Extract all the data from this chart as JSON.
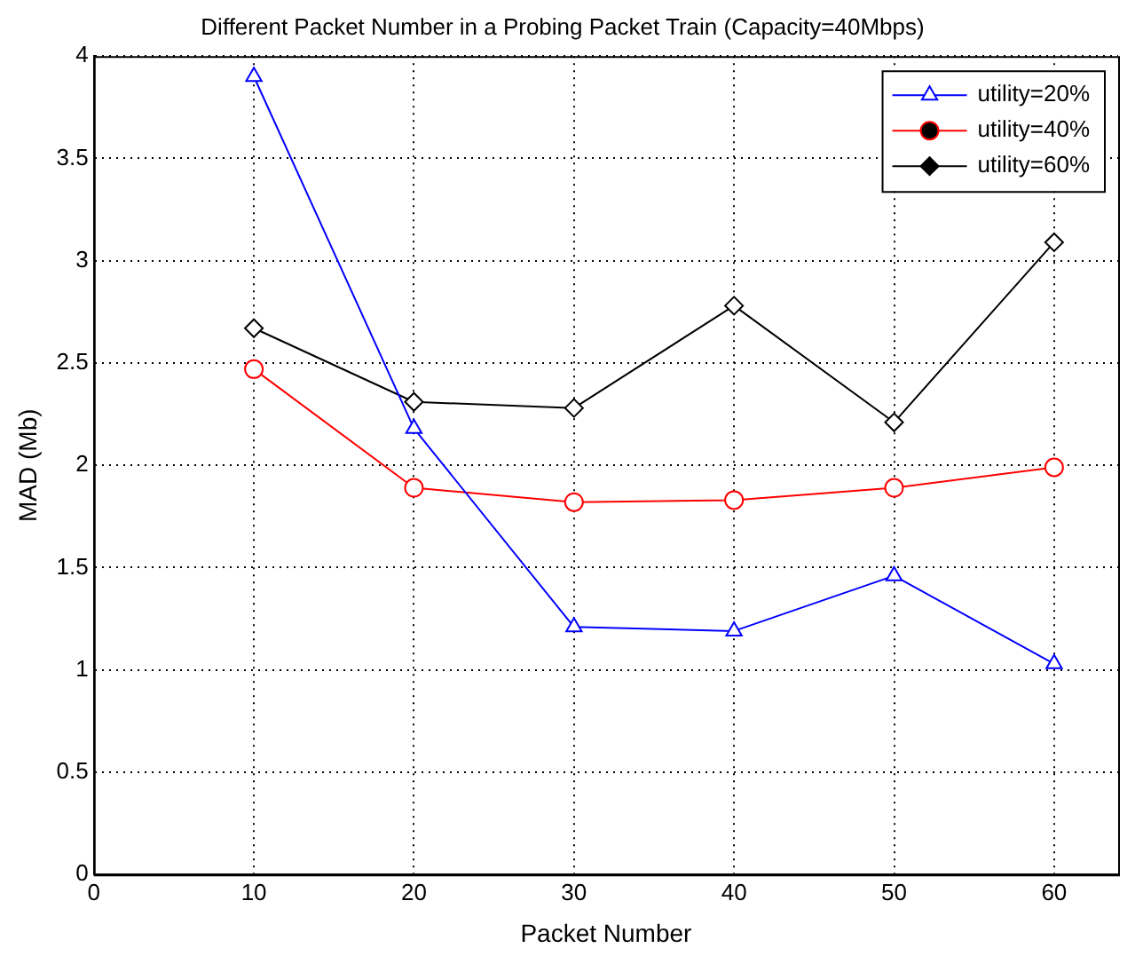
{
  "chart_data": {
    "type": "line",
    "title": "Different Packet Number in a Probing Packet Train (Capacity=40Mbps)",
    "xlabel": "Packet Number",
    "ylabel": "MAD (Mb)",
    "x": [
      10,
      20,
      30,
      40,
      50,
      60
    ],
    "series": [
      {
        "name": "utility=20%",
        "color": "#0000ff",
        "marker": "triangle",
        "values": [
          3.9,
          2.18,
          1.21,
          1.19,
          1.46,
          1.03
        ]
      },
      {
        "name": "utility=40%",
        "color": "#ff0000",
        "marker": "circle",
        "values": [
          2.47,
          1.89,
          1.82,
          1.83,
          1.89,
          1.99
        ]
      },
      {
        "name": "utility=60%",
        "color": "#000000",
        "marker": "diamond",
        "values": [
          2.67,
          2.31,
          2.28,
          2.78,
          2.21,
          3.09
        ]
      }
    ],
    "xlim": [
      0,
      64
    ],
    "xticks": [
      0,
      10,
      20,
      30,
      40,
      50,
      60
    ],
    "ylim": [
      0,
      4
    ],
    "yticks": [
      0,
      0.5,
      1,
      1.5,
      2,
      2.5,
      3,
      3.5,
      4
    ],
    "grid": true,
    "legend": "top right",
    "line_style": "solid"
  }
}
